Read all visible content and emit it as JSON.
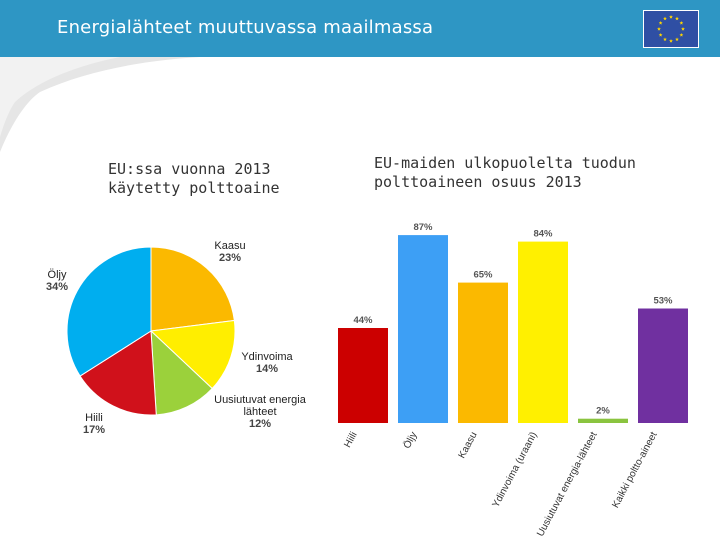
{
  "header": {
    "title": "Energialähteet muuttuvassa maailmassa",
    "flag_icon": "eu-flag-icon"
  },
  "colors": {
    "header": "#2e96c4",
    "flag": "#2f4fa4",
    "star": "#ffd500"
  },
  "chart_data": [
    {
      "type": "pie",
      "title": "EU:ssa vuonna 2013 käytetty polttoaine",
      "slices": [
        {
          "label": [
            "Kaasu"
          ],
          "value": 23,
          "value_label": "23%",
          "color": "#fbb900"
        },
        {
          "label": [
            "Ydinvoima"
          ],
          "value": 14,
          "value_label": "14%",
          "color": "#ffee00"
        },
        {
          "label": [
            "Uusiutuvat energia",
            "lähteet"
          ],
          "value": 12,
          "value_label": "12%",
          "color": "#9bd13b"
        },
        {
          "label": [
            "Hiili"
          ],
          "value": 17,
          "value_label": "17%",
          "color": "#d0111b"
        },
        {
          "label": [
            "Öljy"
          ],
          "value": 34,
          "value_label": "34%",
          "color": "#00aeef"
        }
      ]
    },
    {
      "type": "bar",
      "title": "EU-maiden ulkopuolelta tuodun polttoaineen osuus 2013",
      "ylim": [
        0,
        100
      ],
      "categories": [
        "Hiili",
        "Öljy",
        "Kaasu",
        "Ydinvoima (uraani)",
        "Uusiutuvat energia-lähteet",
        "Kaikki poltto-aineet"
      ],
      "values": [
        44,
        87,
        65,
        84,
        2,
        53
      ],
      "value_labels": [
        "44%",
        "87%",
        "65%",
        "84%",
        "2%",
        "53%"
      ],
      "colors": [
        "#cc0000",
        "#3d9ff5",
        "#fbb900",
        "#fff000",
        "#8ac43f",
        "#7030a0"
      ]
    }
  ]
}
